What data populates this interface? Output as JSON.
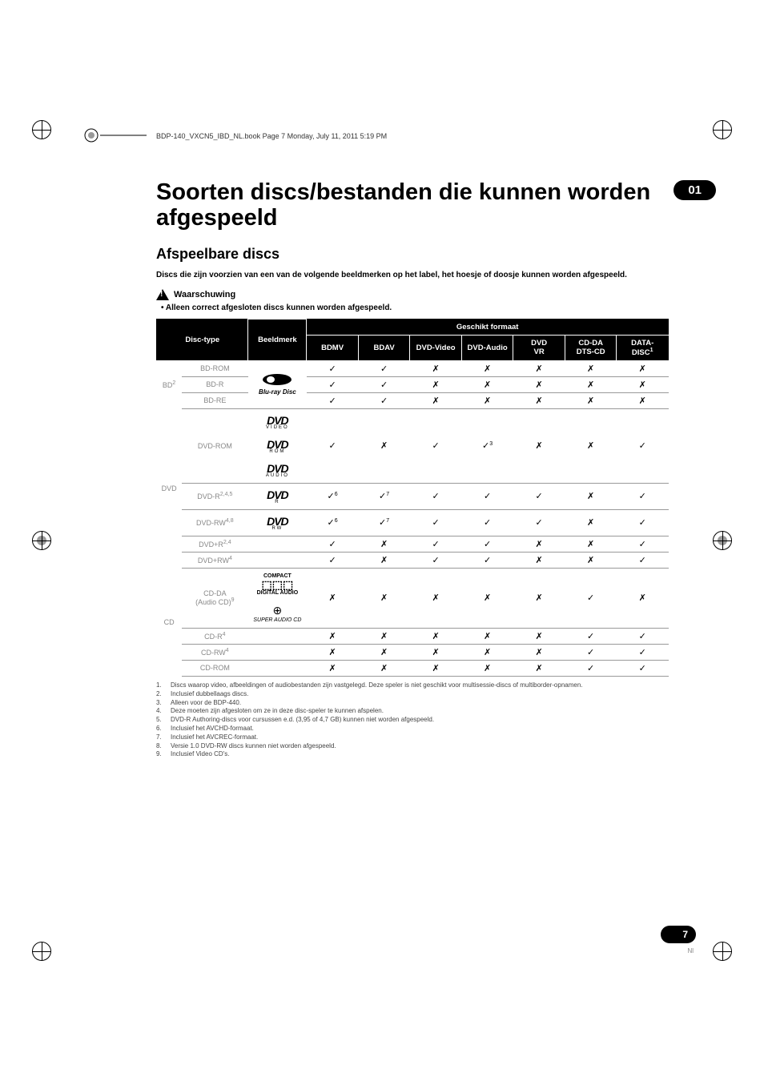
{
  "header_line": "BDP-140_VXCN5_IBD_NL.book  Page 7  Monday, July 11, 2011  5:19 PM",
  "chapter_number": "01",
  "main_title": "Soorten discs/bestanden die kunnen worden afgespeeld",
  "section_title": "Afspeelbare discs",
  "intro": "Discs die zijn voorzien van een van de volgende beeldmerken op het label, het hoesje of doosje kunnen worden afgespeeld.",
  "warning_label": "Waarschuwing",
  "warning_text": "• Alleen correct afgesloten discs kunnen worden afgespeeld.",
  "table": {
    "headers": {
      "disc_type": "Disc-type",
      "logo": "Beeldmerk",
      "group": "Geschikt formaat",
      "cols": [
        "BDMV",
        "BDAV",
        "DVD-Video",
        "DVD-Audio",
        "DVD VR",
        "CD-DA DTS-CD",
        "DATA-DISC"
      ],
      "datadisc_sup": "1"
    },
    "categories": [
      {
        "label": "BD",
        "sup": "2",
        "rows": [
          {
            "type": "BD-ROM",
            "cells": [
              "✓",
              "✓",
              "✗",
              "✗",
              "✗",
              "✗",
              "✗"
            ]
          },
          {
            "type": "BD-R",
            "cells": [
              "✓",
              "✓",
              "✗",
              "✗",
              "✗",
              "✗",
              "✗"
            ]
          },
          {
            "type": "BD-RE",
            "cells": [
              "✓",
              "✓",
              "✗",
              "✗",
              "✗",
              "✗",
              "✗"
            ]
          }
        ]
      },
      {
        "label": "DVD",
        "rows": [
          {
            "type": "DVD-ROM",
            "tall": true,
            "logos": [
              "VIDEO",
              "ROM",
              "AUDIO"
            ],
            "cells": [
              "✓",
              "✗",
              "✓",
              "✓3",
              "✗",
              "✗",
              "✓"
            ]
          },
          {
            "type": "DVD-R",
            "type_sup": "2,4,5",
            "med": true,
            "logos": [
              "R"
            ],
            "cells": [
              "✓6",
              "✓7",
              "✓",
              "✓",
              "✓",
              "✗",
              "✓"
            ]
          },
          {
            "type": "DVD-RW",
            "type_sup": "4,8",
            "med": true,
            "logos": [
              "RW"
            ],
            "cells": [
              "✓6",
              "✓7",
              "✓",
              "✓",
              "✓",
              "✗",
              "✓"
            ]
          },
          {
            "type": "DVD+R",
            "type_sup": "2,4",
            "cells": [
              "✓",
              "✗",
              "✓",
              "✓",
              "✗",
              "✗",
              "✓"
            ]
          },
          {
            "type": "DVD+RW",
            "type_sup": "4",
            "cells": [
              "✓",
              "✗",
              "✓",
              "✓",
              "✗",
              "✗",
              "✓"
            ]
          }
        ]
      },
      {
        "label": "CD",
        "rows": [
          {
            "type": "CD-DA (Audio CD)",
            "type_sup": "9",
            "tall": true,
            "logos": [
              "COMPACT",
              "SACD"
            ],
            "cells": [
              "✗",
              "✗",
              "✗",
              "✗",
              "✗",
              "✓",
              "✗"
            ]
          },
          {
            "type": "CD-R",
            "type_sup": "4",
            "cells": [
              "✗",
              "✗",
              "✗",
              "✗",
              "✗",
              "✓",
              "✓"
            ]
          },
          {
            "type": "CD-RW",
            "type_sup": "4",
            "cells": [
              "✗",
              "✗",
              "✗",
              "✗",
              "✗",
              "✓",
              "✓"
            ]
          },
          {
            "type": "CD-ROM",
            "cells": [
              "✗",
              "✗",
              "✗",
              "✗",
              "✗",
              "✓",
              "✓"
            ]
          }
        ]
      }
    ]
  },
  "footnotes": [
    "Discs waarop video, afbeeldingen of audiobestanden zijn vastgelegd. Deze speler is niet geschikt voor multisessie-discs of multiborder-opnamen.",
    "Inclusief dubbellaags discs.",
    "Alleen voor de BDP-440.",
    "Deze moeten zijn afgesloten om ze in deze disc-speler te kunnen afspelen.",
    "DVD-R Authoring-discs voor cursussen e.d. (3,95 of 4,7 GB) kunnen niet worden afgespeeld.",
    "Inclusief het AVCHD-formaat.",
    "Inclusief het AVCREC-formaat.",
    "Versie 1.0 DVD-RW discs kunnen niet worden afgespeeld.",
    "Inclusief Video CD's."
  ],
  "page_number": "7",
  "lang": "Nl"
}
